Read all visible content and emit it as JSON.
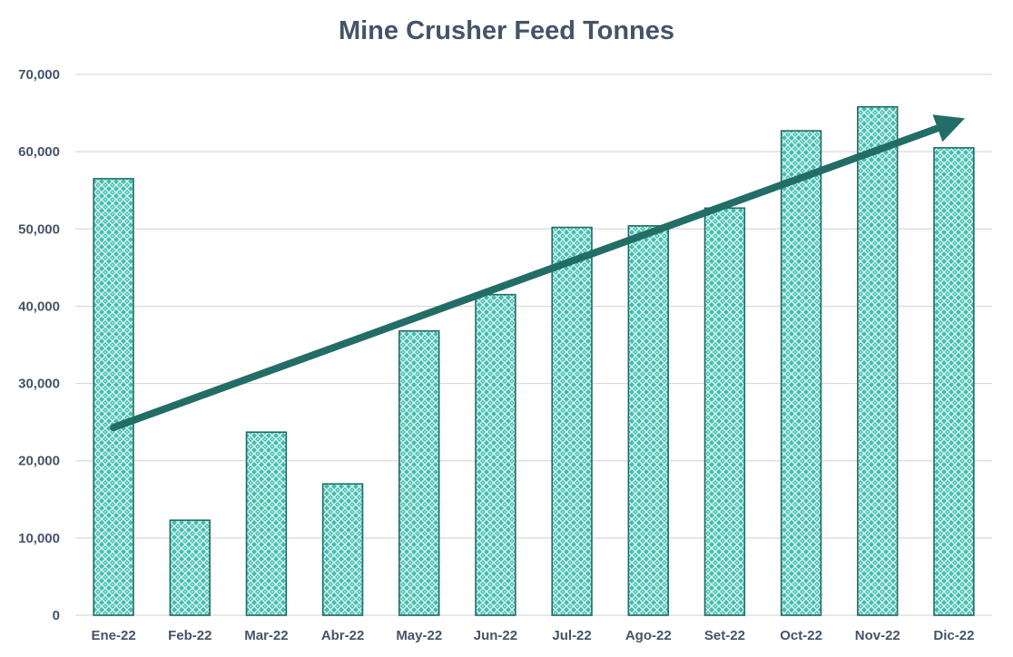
{
  "chart_data": {
    "type": "bar",
    "title": "Mine Crusher Feed Tonnes",
    "xlabel": "",
    "ylabel": "",
    "categories": [
      "Ene-22",
      "Feb-22",
      "Mar-22",
      "Abr-22",
      "May-22",
      "Jun-22",
      "Jul-22",
      "Ago-22",
      "Set-22",
      "Oct-22",
      "Nov-22",
      "Dic-22"
    ],
    "values": [
      56500,
      12300,
      23700,
      17000,
      36800,
      41500,
      50200,
      50400,
      52700,
      62700,
      65800,
      60500
    ],
    "ylim": [
      0,
      70000
    ],
    "yticks": [
      0,
      10000,
      20000,
      30000,
      40000,
      50000,
      60000,
      70000
    ],
    "ytick_labels": [
      "0",
      "10,000",
      "20,000",
      "30,000",
      "40,000",
      "50,000",
      "60,000",
      "70,000"
    ],
    "grid": true,
    "legend": "none",
    "bar_fill": "#3fbfb0",
    "bar_stroke": "#1f6b63",
    "annotation": {
      "type": "trend-arrow",
      "start": {
        "category": "Ene-22",
        "value": 24300
      },
      "end": {
        "category": "Dic-22",
        "value": 63800
      },
      "color": "#226e66"
    }
  }
}
